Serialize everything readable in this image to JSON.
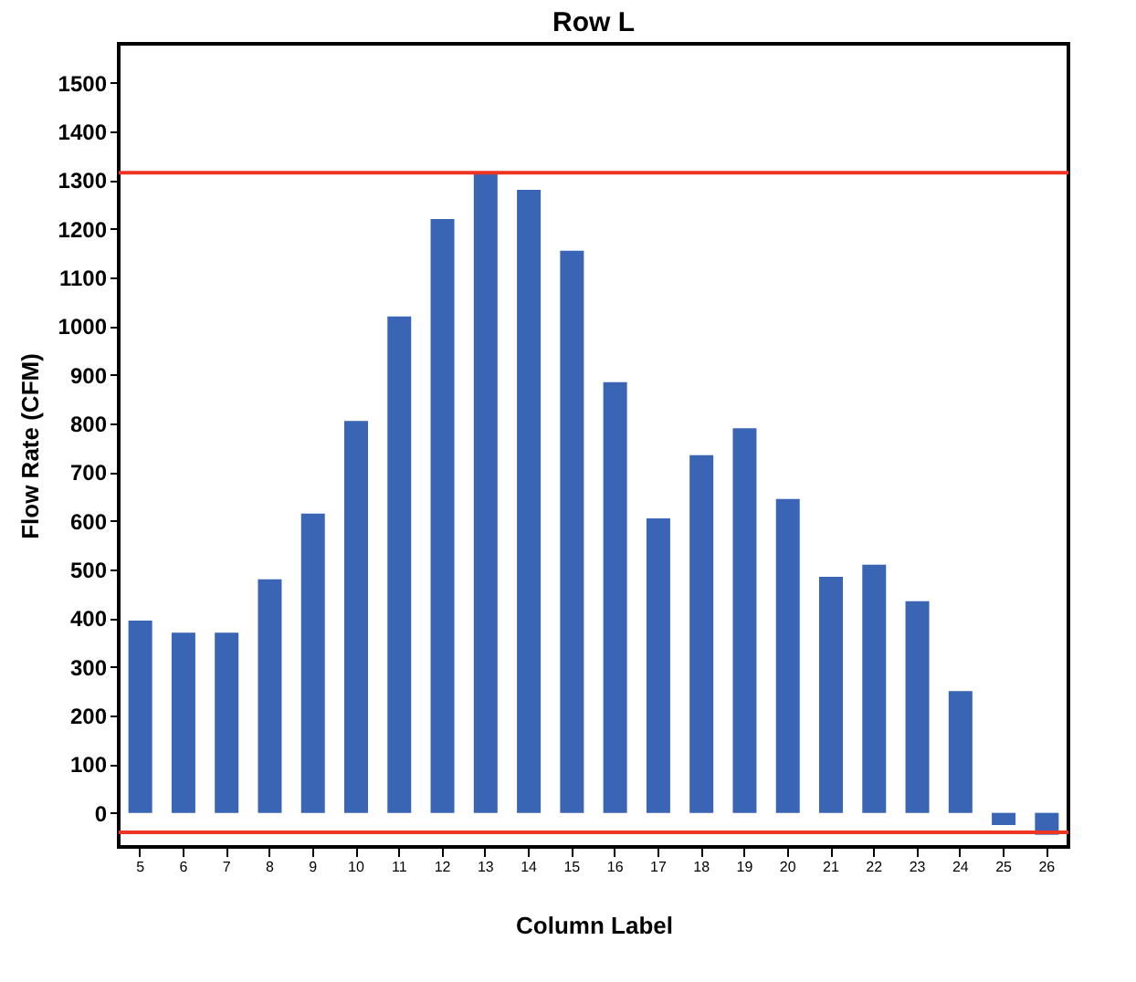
{
  "chart_data": {
    "type": "bar",
    "title": "Row L",
    "xlabel": "Column Label",
    "ylabel": "Flow Rate (CFM)",
    "categories": [
      "5",
      "6",
      "7",
      "8",
      "9",
      "10",
      "11",
      "12",
      "13",
      "14",
      "15",
      "16",
      "17",
      "18",
      "19",
      "20",
      "21",
      "22",
      "23",
      "24",
      "25",
      "26"
    ],
    "values": [
      395,
      370,
      370,
      480,
      615,
      805,
      1020,
      1220,
      1315,
      1280,
      1155,
      885,
      605,
      735,
      790,
      645,
      485,
      510,
      435,
      250,
      -25,
      -45
    ],
    "color": "#3a65b5",
    "ylim": [
      -70,
      1580
    ],
    "yticks": [
      0,
      100,
      200,
      300,
      400,
      500,
      600,
      700,
      800,
      900,
      1000,
      1100,
      1200,
      1300,
      1400,
      1500
    ],
    "grid": false,
    "ref_lines": [
      {
        "axis": "y",
        "value": 1315,
        "color": "#ee3524"
      },
      {
        "axis": "y",
        "value": -40,
        "color": "#ee3524"
      }
    ]
  }
}
